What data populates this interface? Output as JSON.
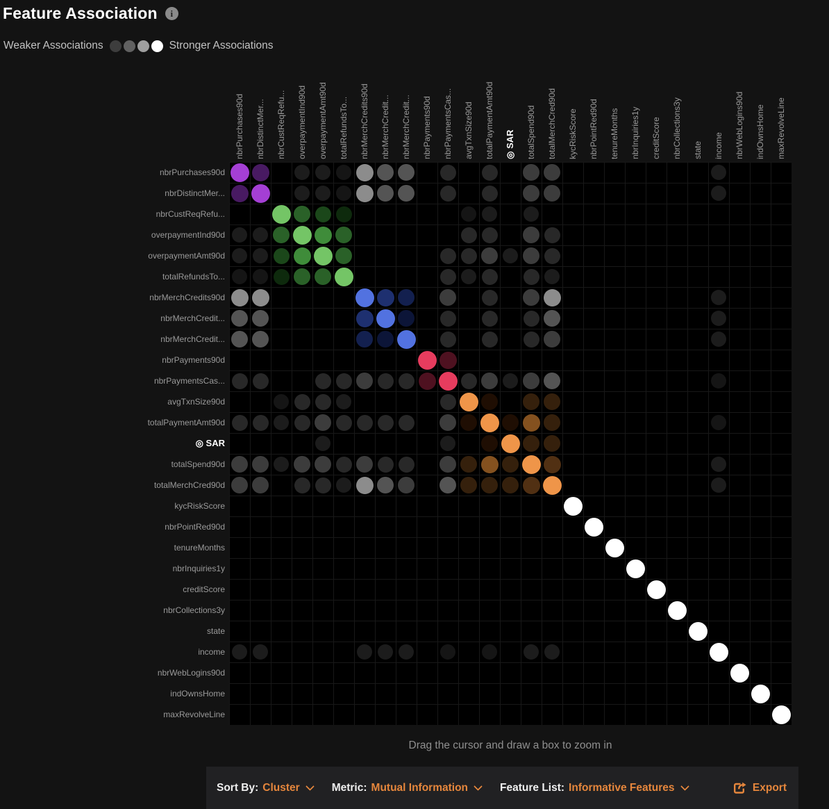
{
  "header": {
    "title": "Feature Association",
    "info_icon": "i"
  },
  "legend": {
    "weaker": "Weaker Associations",
    "stronger": "Stronger Associations",
    "scale_colors": [
      "#3d3d3d",
      "#616161",
      "#9f9f9f",
      "#ffffff"
    ]
  },
  "matrix": {
    "features": [
      "nbrPurchases90d",
      "nbrDistinctMer...",
      "nbrCustReqRefu...",
      "overpaymentInd90d",
      "overpaymentAmt90d",
      "totalRefundsTo...",
      "nbrMerchCredits90d",
      "nbrMerchCredit...",
      "nbrMerchCredit...",
      "nbrPayments90d",
      "nbrPaymentsCas...",
      "avgTxnSize90d",
      "totalPaymentAmt90d",
      "SAR",
      "totalSpend90d",
      "totalMerchCred90d",
      "kycRiskScore",
      "nbrPointRed90d",
      "tenureMonths",
      "nbrInquiries1y",
      "creditScore",
      "nbrCollections3y",
      "state",
      "income",
      "nbrWebLogins90d",
      "indOwnsHome",
      "maxRevolveLine"
    ],
    "target_feature": "SAR",
    "target_index": 13,
    "target_icon": "◎",
    "cell_size": 30,
    "palette": {
      "P2": {
        "color": "#a43fd4",
        "size": 27
      },
      "P1": {
        "color": "#481a62",
        "size": 25
      },
      "G4": {
        "color": "#74c566",
        "size": 27
      },
      "G3": {
        "color": "#3f8c3a",
        "size": 25
      },
      "G2": {
        "color": "#2a6128",
        "size": 24
      },
      "G1": {
        "color": "#1b471a",
        "size": 23
      },
      "G0": {
        "color": "#0e2a0d",
        "size": 23
      },
      "B3": {
        "color": "#5272e0",
        "size": 27
      },
      "B2": {
        "color": "#1e3070",
        "size": 25
      },
      "B1": {
        "color": "#13204f",
        "size": 24
      },
      "B0": {
        "color": "#0c1538",
        "size": 24
      },
      "R2": {
        "color": "#e63c5e",
        "size": 27
      },
      "R1": {
        "color": "#4e1120",
        "size": 25
      },
      "O3": {
        "color": "#ef9549",
        "size": 27
      },
      "O2": {
        "color": "#84511f",
        "size": 25
      },
      "O15": {
        "color": "#513013",
        "size": 25
      },
      "O1": {
        "color": "#35200c",
        "size": 24
      },
      "O0": {
        "color": "#1f0e03",
        "size": 24
      },
      "W": {
        "color": "#ffffff",
        "size": 27
      },
      "g5": {
        "color": "#8c8c8c",
        "size": 25
      },
      "g4": {
        "color": "#545454",
        "size": 24
      },
      "g3": {
        "color": "#3c3c3c",
        "size": 24
      },
      "g2": {
        "color": "#282828",
        "size": 23
      },
      "g1": {
        "color": "#1c1c1c",
        "size": 22
      },
      "g0": {
        "color": "#151515",
        "size": 22
      }
    },
    "dots": [
      [
        1,
        1,
        "P2"
      ],
      [
        2,
        2,
        "P2"
      ],
      [
        3,
        3,
        "G4"
      ],
      [
        4,
        4,
        "G4"
      ],
      [
        5,
        5,
        "G4"
      ],
      [
        6,
        6,
        "G4"
      ],
      [
        7,
        7,
        "B3"
      ],
      [
        8,
        8,
        "B3"
      ],
      [
        9,
        9,
        "B3"
      ],
      [
        10,
        10,
        "R2"
      ],
      [
        11,
        11,
        "R2"
      ],
      [
        12,
        12,
        "O3"
      ],
      [
        13,
        13,
        "O3"
      ],
      [
        14,
        14,
        "O3"
      ],
      [
        15,
        15,
        "O3"
      ],
      [
        16,
        16,
        "O3"
      ],
      [
        17,
        17,
        "W"
      ],
      [
        18,
        18,
        "W"
      ],
      [
        19,
        19,
        "W"
      ],
      [
        20,
        20,
        "W"
      ],
      [
        21,
        21,
        "W"
      ],
      [
        22,
        22,
        "W"
      ],
      [
        23,
        23,
        "W"
      ],
      [
        24,
        24,
        "W"
      ],
      [
        25,
        25,
        "W"
      ],
      [
        26,
        26,
        "W"
      ],
      [
        27,
        27,
        "W"
      ],
      [
        1,
        2,
        "P1"
      ],
      [
        2,
        1,
        "P1"
      ],
      [
        3,
        4,
        "G2"
      ],
      [
        4,
        3,
        "G2"
      ],
      [
        3,
        5,
        "G1"
      ],
      [
        5,
        3,
        "G1"
      ],
      [
        3,
        6,
        "G0"
      ],
      [
        6,
        3,
        "G0"
      ],
      [
        4,
        5,
        "G3"
      ],
      [
        5,
        4,
        "G3"
      ],
      [
        4,
        6,
        "G2"
      ],
      [
        6,
        4,
        "G2"
      ],
      [
        5,
        6,
        "G2"
      ],
      [
        6,
        5,
        "G2"
      ],
      [
        7,
        8,
        "B2"
      ],
      [
        8,
        7,
        "B2"
      ],
      [
        7,
        9,
        "B1"
      ],
      [
        9,
        7,
        "B1"
      ],
      [
        8,
        9,
        "B0"
      ],
      [
        9,
        8,
        "B0"
      ],
      [
        10,
        11,
        "R1"
      ],
      [
        11,
        10,
        "R1"
      ],
      [
        12,
        13,
        "O0"
      ],
      [
        13,
        12,
        "O0"
      ],
      [
        12,
        15,
        "O1"
      ],
      [
        15,
        12,
        "O1"
      ],
      [
        12,
        16,
        "O1"
      ],
      [
        16,
        12,
        "O1"
      ],
      [
        13,
        14,
        "O0"
      ],
      [
        14,
        13,
        "O0"
      ],
      [
        13,
        15,
        "O2"
      ],
      [
        15,
        13,
        "O2"
      ],
      [
        13,
        16,
        "O1"
      ],
      [
        16,
        13,
        "O1"
      ],
      [
        14,
        15,
        "O1"
      ],
      [
        15,
        14,
        "O1"
      ],
      [
        14,
        16,
        "O1"
      ],
      [
        16,
        14,
        "O1"
      ],
      [
        15,
        16,
        "O15"
      ],
      [
        16,
        15,
        "O15"
      ],
      [
        1,
        4,
        "g1"
      ],
      [
        4,
        1,
        "g1"
      ],
      [
        1,
        5,
        "g1"
      ],
      [
        5,
        1,
        "g1"
      ],
      [
        1,
        6,
        "g0"
      ],
      [
        6,
        1,
        "g0"
      ],
      [
        2,
        4,
        "g1"
      ],
      [
        4,
        2,
        "g1"
      ],
      [
        2,
        5,
        "g1"
      ],
      [
        5,
        2,
        "g1"
      ],
      [
        2,
        6,
        "g0"
      ],
      [
        6,
        2,
        "g0"
      ],
      [
        1,
        7,
        "g5"
      ],
      [
        7,
        1,
        "g5"
      ],
      [
        2,
        7,
        "g5"
      ],
      [
        7,
        2,
        "g5"
      ],
      [
        1,
        8,
        "g4"
      ],
      [
        8,
        1,
        "g4"
      ],
      [
        2,
        8,
        "g4"
      ],
      [
        8,
        2,
        "g4"
      ],
      [
        1,
        9,
        "g4"
      ],
      [
        9,
        1,
        "g4"
      ],
      [
        2,
        9,
        "g4"
      ],
      [
        9,
        2,
        "g4"
      ],
      [
        1,
        11,
        "g2"
      ],
      [
        11,
        1,
        "g2"
      ],
      [
        2,
        11,
        "g2"
      ],
      [
        11,
        2,
        "g2"
      ],
      [
        1,
        13,
        "g2"
      ],
      [
        13,
        1,
        "g2"
      ],
      [
        2,
        13,
        "g2"
      ],
      [
        13,
        2,
        "g2"
      ],
      [
        1,
        15,
        "g3"
      ],
      [
        15,
        1,
        "g3"
      ],
      [
        2,
        15,
        "g3"
      ],
      [
        15,
        2,
        "g3"
      ],
      [
        1,
        16,
        "g3"
      ],
      [
        16,
        1,
        "g3"
      ],
      [
        2,
        16,
        "g3"
      ],
      [
        16,
        2,
        "g3"
      ],
      [
        1,
        24,
        "g1"
      ],
      [
        24,
        1,
        "g1"
      ],
      [
        2,
        24,
        "g1"
      ],
      [
        24,
        2,
        "g1"
      ],
      [
        3,
        12,
        "g0"
      ],
      [
        12,
        3,
        "g0"
      ],
      [
        3,
        13,
        "g1"
      ],
      [
        13,
        3,
        "g1"
      ],
      [
        3,
        15,
        "g1"
      ],
      [
        15,
        3,
        "g1"
      ],
      [
        4,
        12,
        "g2"
      ],
      [
        12,
        4,
        "g2"
      ],
      [
        4,
        13,
        "g2"
      ],
      [
        13,
        4,
        "g2"
      ],
      [
        4,
        15,
        "g3"
      ],
      [
        15,
        4,
        "g3"
      ],
      [
        4,
        16,
        "g2"
      ],
      [
        16,
        4,
        "g2"
      ],
      [
        5,
        11,
        "g2"
      ],
      [
        11,
        5,
        "g2"
      ],
      [
        5,
        12,
        "g2"
      ],
      [
        12,
        5,
        "g2"
      ],
      [
        5,
        13,
        "g3"
      ],
      [
        13,
        5,
        "g3"
      ],
      [
        5,
        14,
        "g1"
      ],
      [
        14,
        5,
        "g1"
      ],
      [
        5,
        15,
        "g3"
      ],
      [
        15,
        5,
        "g3"
      ],
      [
        5,
        16,
        "g2"
      ],
      [
        16,
        5,
        "g2"
      ],
      [
        6,
        11,
        "g2"
      ],
      [
        11,
        6,
        "g2"
      ],
      [
        6,
        12,
        "g1"
      ],
      [
        12,
        6,
        "g1"
      ],
      [
        6,
        13,
        "g2"
      ],
      [
        13,
        6,
        "g2"
      ],
      [
        6,
        15,
        "g2"
      ],
      [
        15,
        6,
        "g2"
      ],
      [
        6,
        16,
        "g1"
      ],
      [
        16,
        6,
        "g1"
      ],
      [
        7,
        11,
        "g3"
      ],
      [
        11,
        7,
        "g3"
      ],
      [
        8,
        11,
        "g2"
      ],
      [
        11,
        8,
        "g2"
      ],
      [
        9,
        11,
        "g2"
      ],
      [
        11,
        9,
        "g2"
      ],
      [
        7,
        13,
        "g2"
      ],
      [
        13,
        7,
        "g2"
      ],
      [
        8,
        13,
        "g2"
      ],
      [
        13,
        8,
        "g2"
      ],
      [
        9,
        13,
        "g2"
      ],
      [
        13,
        9,
        "g2"
      ],
      [
        7,
        15,
        "g3"
      ],
      [
        15,
        7,
        "g3"
      ],
      [
        8,
        15,
        "g2"
      ],
      [
        15,
        8,
        "g2"
      ],
      [
        9,
        15,
        "g2"
      ],
      [
        15,
        9,
        "g2"
      ],
      [
        7,
        16,
        "g5"
      ],
      [
        16,
        7,
        "g5"
      ],
      [
        8,
        16,
        "g4"
      ],
      [
        16,
        8,
        "g4"
      ],
      [
        9,
        16,
        "g3"
      ],
      [
        16,
        9,
        "g3"
      ],
      [
        7,
        24,
        "g1"
      ],
      [
        24,
        7,
        "g1"
      ],
      [
        8,
        24,
        "g1"
      ],
      [
        24,
        8,
        "g1"
      ],
      [
        9,
        24,
        "g1"
      ],
      [
        24,
        9,
        "g1"
      ],
      [
        11,
        12,
        "g2"
      ],
      [
        12,
        11,
        "g2"
      ],
      [
        11,
        13,
        "g3"
      ],
      [
        13,
        11,
        "g3"
      ],
      [
        11,
        14,
        "g1"
      ],
      [
        14,
        11,
        "g1"
      ],
      [
        11,
        15,
        "g3"
      ],
      [
        15,
        11,
        "g3"
      ],
      [
        11,
        16,
        "g4"
      ],
      [
        16,
        11,
        "g4"
      ],
      [
        11,
        24,
        "g0"
      ],
      [
        24,
        11,
        "g0"
      ],
      [
        13,
        24,
        "g0"
      ],
      [
        24,
        13,
        "g0"
      ],
      [
        15,
        24,
        "g1"
      ],
      [
        24,
        15,
        "g1"
      ],
      [
        16,
        24,
        "g1"
      ],
      [
        24,
        16,
        "g1"
      ]
    ]
  },
  "hint": "Drag the cursor and draw a box to zoom in",
  "toolbar": {
    "accent": "#e5863c",
    "sort_by_label": "Sort By:",
    "sort_by_value": "Cluster",
    "metric_label": "Metric:",
    "metric_value": "Mutual Information",
    "feature_list_label": "Feature List:",
    "feature_list_value": "Informative Features",
    "export_label": "Export"
  }
}
